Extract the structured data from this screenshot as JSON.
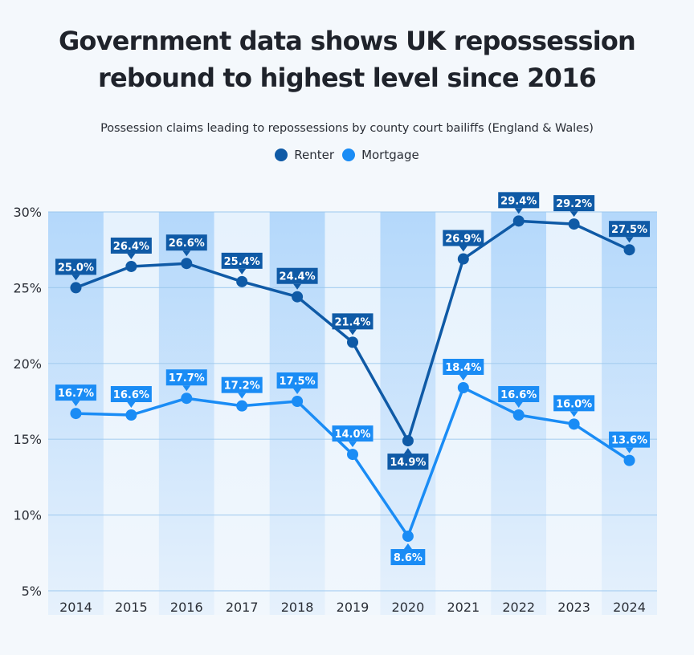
{
  "header": {
    "title_line1": "Government data shows UK repossession",
    "title_line2": "rebound to highest level since 2016",
    "subtitle": "Possession claims leading to repossessions by county court bailiffs (England & Wales)"
  },
  "legend": [
    {
      "name": "Renter",
      "color": "#0f5aa6"
    },
    {
      "name": "Mortgage",
      "color": "#1a8cf5"
    }
  ],
  "colors": {
    "band_dark": "#b6d9fb",
    "band_light": "#e8f3fd",
    "gridline": "#9cc8ee",
    "background": "#f4f8fc"
  },
  "chart_data": {
    "type": "line",
    "title": "Government data shows UK repossession rebound to highest level since 2016",
    "subtitle": "Possession claims leading to repossessions by county court bailiffs (England & Wales)",
    "xlabel": "",
    "ylabel": "",
    "x": [
      "2014",
      "2015",
      "2016",
      "2017",
      "2018",
      "2019",
      "2020",
      "2021",
      "2022",
      "2023",
      "2024"
    ],
    "ylim": [
      5,
      30
    ],
    "yticks": [
      5,
      10,
      15,
      20,
      25,
      30
    ],
    "ytick_labels": [
      "5%",
      "10%",
      "15%",
      "20%",
      "25%",
      "30%"
    ],
    "grid": true,
    "legend_position": "top-center",
    "series": [
      {
        "name": "Renter",
        "color": "#0f5aa6",
        "values": [
          25.0,
          26.4,
          26.6,
          25.4,
          24.4,
          21.4,
          14.9,
          26.9,
          29.4,
          29.2,
          27.5
        ],
        "labels": [
          "25.0%",
          "26.4%",
          "26.6%",
          "25.4%",
          "24.4%",
          "21.4%",
          "14.9%",
          "26.9%",
          "29.4%",
          "29.2%",
          "27.5%"
        ],
        "label_below": [
          false,
          false,
          false,
          false,
          false,
          false,
          true,
          false,
          false,
          false,
          false
        ]
      },
      {
        "name": "Mortgage",
        "color": "#1a8cf5",
        "values": [
          16.7,
          16.6,
          17.7,
          17.2,
          17.5,
          14.0,
          8.6,
          18.4,
          16.6,
          16.0,
          13.6
        ],
        "labels": [
          "16.7%",
          "16.6%",
          "17.7%",
          "17.2%",
          "17.5%",
          "14.0%",
          "8.6%",
          "18.4%",
          "16.6%",
          "16.0%",
          "13.6%"
        ],
        "label_below": [
          false,
          false,
          false,
          false,
          false,
          false,
          true,
          false,
          false,
          false,
          false
        ]
      }
    ]
  }
}
